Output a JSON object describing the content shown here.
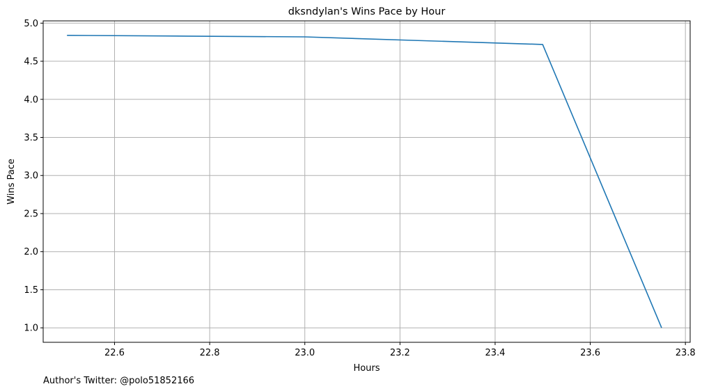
{
  "chart_data": {
    "type": "line",
    "title": "dksndylan's Wins Pace by Hour",
    "xlabel": "Hours",
    "ylabel": "Wins Pace",
    "xlim": [
      22.45,
      23.81
    ],
    "ylim": [
      0.81,
      5.03
    ],
    "xticks": [
      22.6,
      22.8,
      23.0,
      23.2,
      23.4,
      23.6,
      23.8
    ],
    "xtick_labels": [
      "22.6",
      "22.8",
      "23.0",
      "23.2",
      "23.4",
      "23.6",
      "23.8"
    ],
    "yticks": [
      1.0,
      1.5,
      2.0,
      2.5,
      3.0,
      3.5,
      4.0,
      4.5,
      5.0
    ],
    "ytick_labels": [
      "1.0",
      "1.5",
      "2.0",
      "2.5",
      "3.0",
      "3.5",
      "4.0",
      "4.5",
      "5.0"
    ],
    "grid": true,
    "series": [
      {
        "color": "#1f77b4",
        "x": [
          22.5,
          22.75,
          23.0,
          23.25,
          23.5,
          23.75
        ],
        "y": [
          4.84,
          4.83,
          4.82,
          4.77,
          4.72,
          1.0
        ]
      }
    ]
  },
  "footnote": "Author's Twitter: @polo51852166"
}
